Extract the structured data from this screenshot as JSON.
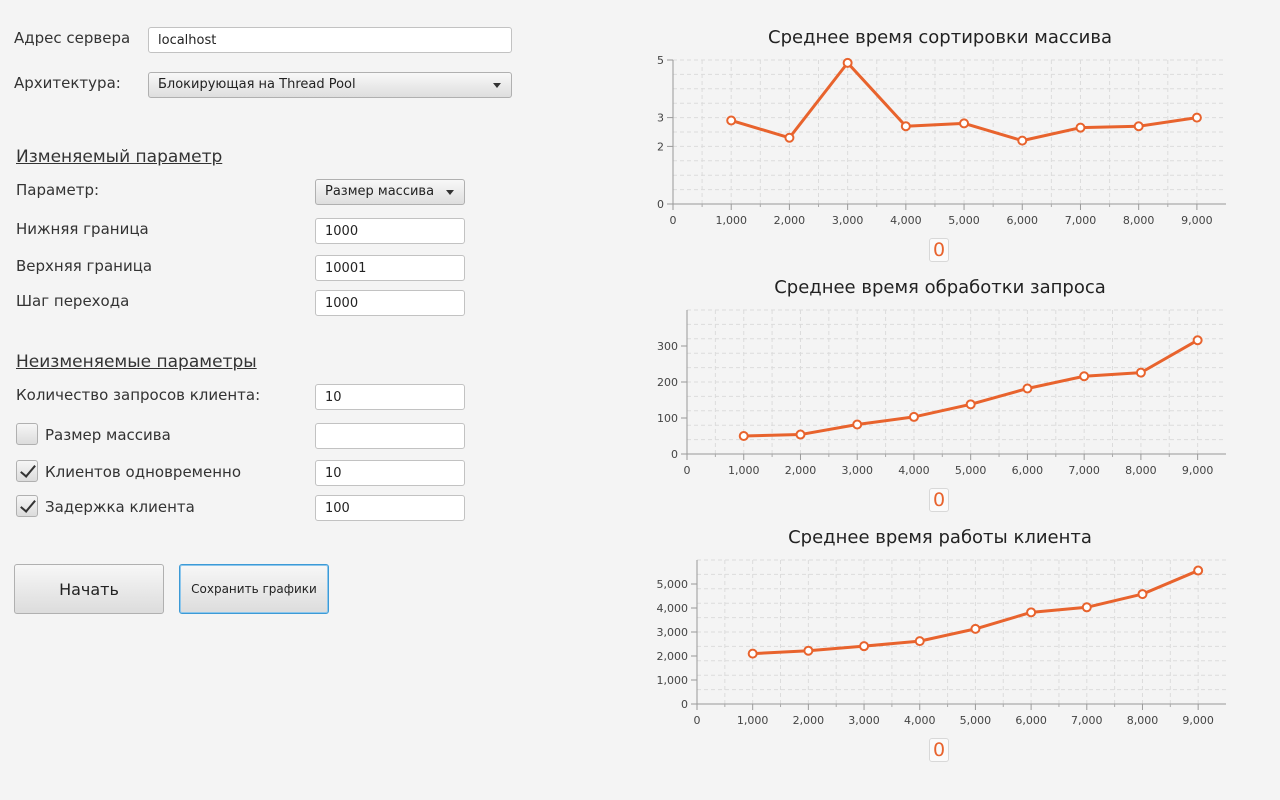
{
  "form": {
    "server_label": "Адрес сервера",
    "server_value": "localhost",
    "arch_label": "Архитектура:",
    "arch_value": "Блокирующая на Thread Pool",
    "var_section": "Изменяемый параметр",
    "param_label": "Параметр:",
    "param_value": "Размер массива",
    "lower_label": "Нижняя граница",
    "lower_value": "1000",
    "upper_label": "Верхняя граница",
    "upper_value": "10001",
    "step_label": "Шаг перехода",
    "step_value": "1000",
    "fixed_section": "Неизменяемые параметры",
    "requests_label": "Количество запросов клиента:",
    "requests_value": "10",
    "fixed_params": [
      {
        "label": "Размер массива",
        "checked": false,
        "value": ""
      },
      {
        "label": "Клиентов одновременно",
        "checked": true,
        "value": "10"
      },
      {
        "label": "Задержка клиента",
        "checked": true,
        "value": "100"
      }
    ],
    "start_button": "Начать",
    "save_button": "Сохранить графики"
  },
  "colors": {
    "series": "#e8632d",
    "grid": "#dcdcdc"
  },
  "chart_data": [
    {
      "type": "line",
      "title": "Среднее время сортировки массива",
      "xlim": [
        0,
        9500
      ],
      "xticks": [
        0,
        1000,
        2000,
        3000,
        4000,
        5000,
        6000,
        7000,
        8000,
        9000
      ],
      "xtick_labels": [
        "0",
        "1,000",
        "2,000",
        "3,000",
        "4,000",
        "5,000",
        "6,000",
        "7,000",
        "8,000",
        "9,000"
      ],
      "ylim": [
        0,
        5
      ],
      "yticks": [
        0,
        2,
        3,
        5
      ],
      "ytick_labels": [
        "0",
        "2",
        "3",
        "5"
      ],
      "x": [
        1000,
        2000,
        3000,
        4000,
        5000,
        6000,
        7000,
        8000,
        9000
      ],
      "values": [
        2.9,
        2.3,
        4.9,
        2.7,
        2.8,
        2.2,
        2.65,
        2.7,
        3.0
      ],
      "legend": "0",
      "legend_placement": "bottom",
      "grid": true
    },
    {
      "type": "line",
      "title": "Среднее время обработки запроса",
      "xlim": [
        0,
        9500
      ],
      "xticks": [
        0,
        1000,
        2000,
        3000,
        4000,
        5000,
        6000,
        7000,
        8000,
        9000
      ],
      "xtick_labels": [
        "0",
        "1,000",
        "2,000",
        "3,000",
        "4,000",
        "5,000",
        "6,000",
        "7,000",
        "8,000",
        "9,000"
      ],
      "ylim": [
        0,
        400
      ],
      "yticks": [
        0,
        100,
        200,
        300
      ],
      "ytick_labels": [
        "0",
        "100",
        "200",
        "300"
      ],
      "x": [
        1000,
        2000,
        3000,
        4000,
        5000,
        6000,
        7000,
        8000,
        9000
      ],
      "values": [
        50,
        54,
        82,
        103,
        138,
        182,
        216,
        226,
        316
      ],
      "legend": "0",
      "legend_placement": "bottom",
      "grid": true
    },
    {
      "type": "line",
      "title": "Среднее время работы клиента",
      "xlim": [
        0,
        9500
      ],
      "xticks": [
        0,
        1000,
        2000,
        3000,
        4000,
        5000,
        6000,
        7000,
        8000,
        9000
      ],
      "xtick_labels": [
        "0",
        "1,000",
        "2,000",
        "3,000",
        "4,000",
        "5,000",
        "6,000",
        "7,000",
        "8,000",
        "9,000"
      ],
      "ylim": [
        0,
        6000
      ],
      "yticks": [
        0,
        1000,
        2000,
        3000,
        4000,
        5000
      ],
      "ytick_labels": [
        "0",
        "1,000",
        "2,000",
        "3,000",
        "4,000",
        "5,000"
      ],
      "x": [
        1000,
        2000,
        3000,
        4000,
        5000,
        6000,
        7000,
        8000,
        9000
      ],
      "values": [
        2100,
        2220,
        2410,
        2620,
        3130,
        3820,
        4030,
        4580,
        5560
      ],
      "legend": "0",
      "legend_placement": "bottom",
      "grid": true
    }
  ]
}
